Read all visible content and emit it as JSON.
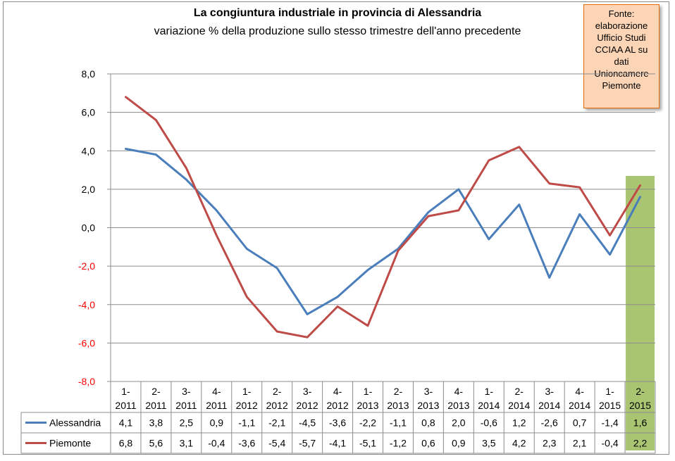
{
  "chart_data": {
    "type": "line",
    "title": "La congiuntura industriale in provincia di Alessandria",
    "subtitle": "variazione % della produzione sullo stesso trimestre dell'anno precedente",
    "source_note": [
      "Fonte:",
      "elaborazione",
      "Ufficio Studi",
      "CCIAA AL su",
      "dati",
      "Unioncamere",
      "Piemonte"
    ],
    "categories": [
      [
        "1-",
        "2011"
      ],
      [
        "2-",
        "2011"
      ],
      [
        "3-",
        "2011"
      ],
      [
        "4-",
        "2011"
      ],
      [
        "1-",
        "2012"
      ],
      [
        "2-",
        "2012"
      ],
      [
        "3-",
        "2012"
      ],
      [
        "4-",
        "2012"
      ],
      [
        "1-",
        "2013"
      ],
      [
        "2-",
        "2013"
      ],
      [
        "3-",
        "2013"
      ],
      [
        "4-",
        "2013"
      ],
      [
        "1-",
        "2014"
      ],
      [
        "2-",
        "2014"
      ],
      [
        "3-",
        "2014"
      ],
      [
        "4-",
        "2014"
      ],
      [
        "1-",
        "2015"
      ],
      [
        "2-",
        "2015"
      ]
    ],
    "series": [
      {
        "name": "Alessandria",
        "color": "#4a7ebb",
        "values": [
          4.1,
          3.8,
          2.5,
          0.9,
          -1.1,
          -2.1,
          -4.5,
          -3.6,
          -2.2,
          -1.1,
          0.8,
          2.0,
          -0.6,
          1.2,
          -2.6,
          0.7,
          -1.4,
          1.6
        ],
        "labels": [
          "4,1",
          "3,8",
          "2,5",
          "0,9",
          "-1,1",
          "-2,1",
          "-4,5",
          "-3,6",
          "-2,2",
          "-1,1",
          "0,8",
          "2,0",
          "-0,6",
          "1,2",
          "-2,6",
          "0,7",
          "-1,4",
          "1,6"
        ]
      },
      {
        "name": "Piemonte",
        "color": "#be4b48",
        "values": [
          6.8,
          5.6,
          3.1,
          -0.4,
          -3.6,
          -5.4,
          -5.7,
          -4.1,
          -5.1,
          -1.2,
          0.6,
          0.9,
          3.5,
          4.2,
          2.3,
          2.1,
          -0.4,
          2.2
        ],
        "labels": [
          "6,8",
          "5,6",
          "3,1",
          "-0,4",
          "-3,6",
          "-5,4",
          "-5,7",
          "-4,1",
          "-5,1",
          "-1,2",
          "0,6",
          "0,9",
          "3,5",
          "4,2",
          "2,3",
          "2,1",
          "-0,4",
          "2,2"
        ]
      }
    ],
    "y_ticks": [
      8,
      6,
      4,
      2,
      0,
      -2,
      -4,
      -6,
      -8
    ],
    "y_tick_labels": [
      "8,0",
      "6,0",
      "4,0",
      "2,0",
      "0,0",
      "-2,0",
      "-4,0",
      "-6,0",
      "-8,0"
    ],
    "ylim": [
      -8,
      8
    ],
    "negative_tick_color": "#ff0000",
    "highlight_category_index": 17,
    "highlight_color": "#9bbb59",
    "grid": true,
    "legend": "data-table-rows"
  }
}
